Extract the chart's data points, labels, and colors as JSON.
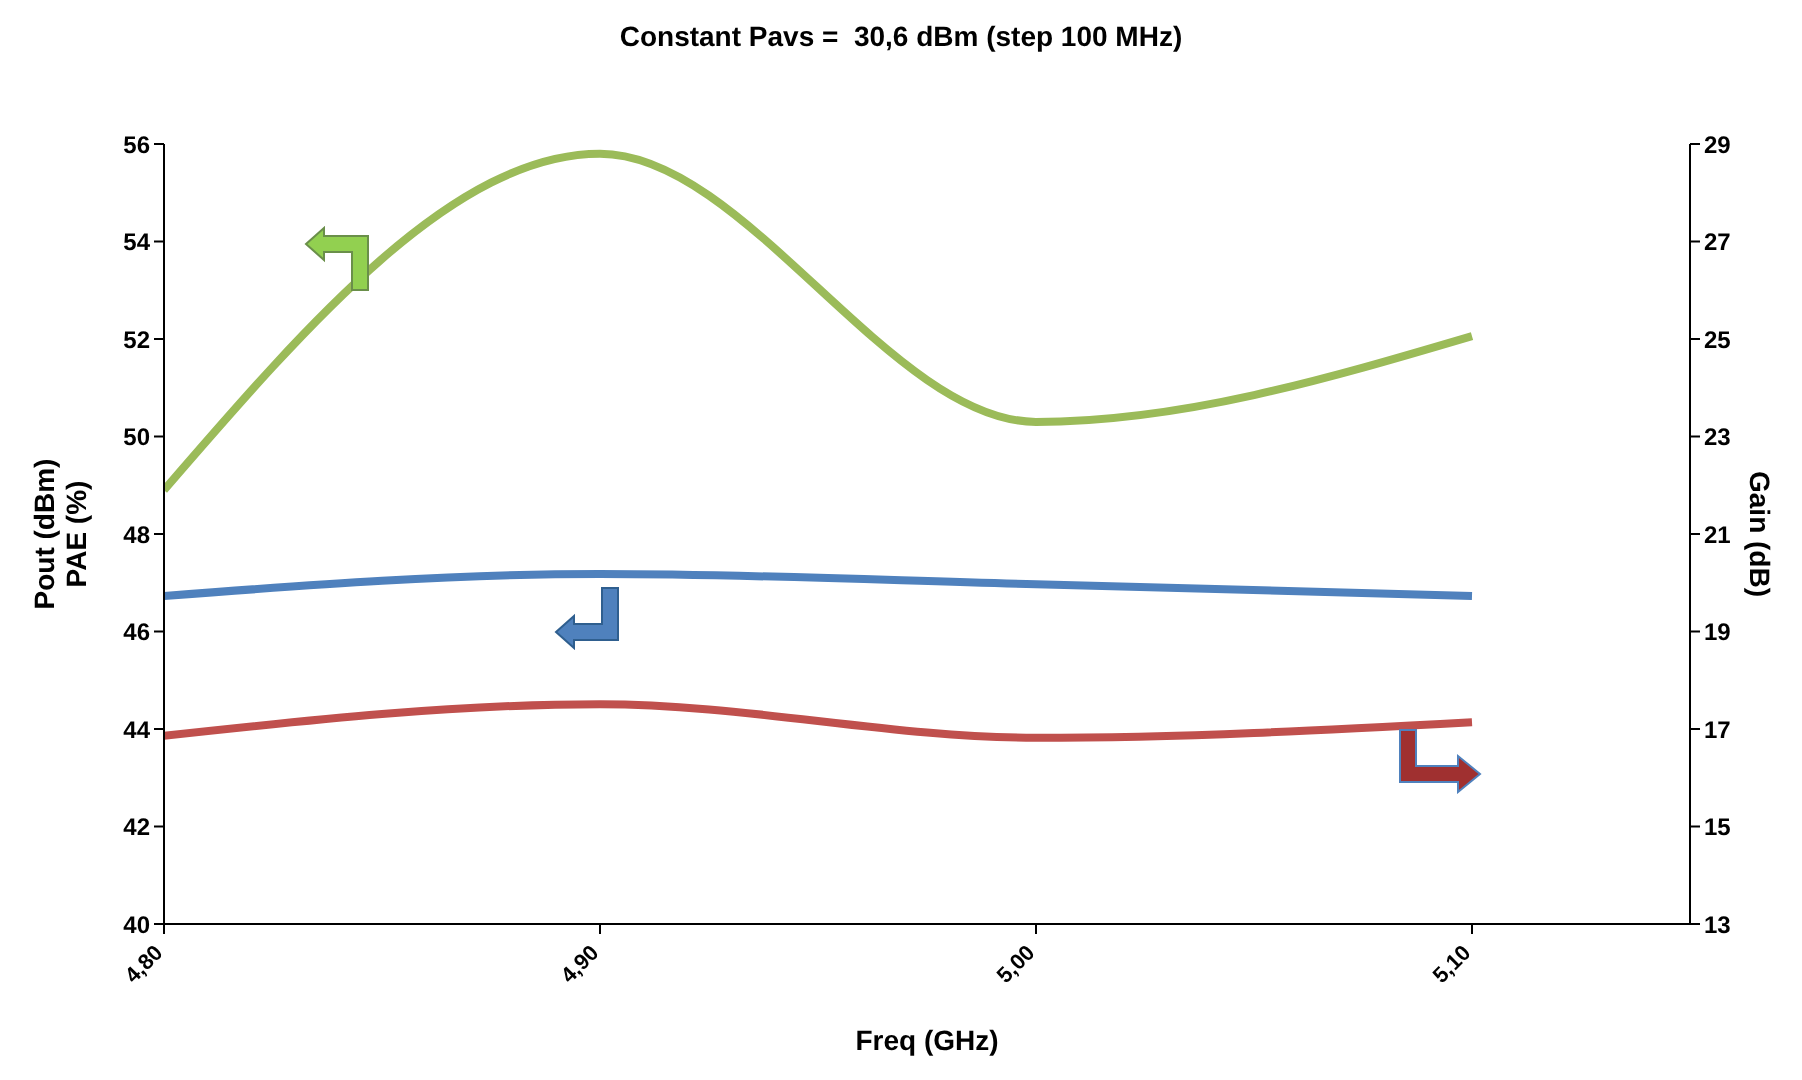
{
  "chart_data": {
    "type": "line",
    "title": "Constant Pavs =  30,6 dBm (step 100 MHz)",
    "xlabel": "Freq (GHz)",
    "ylabel": "Pout (dBm)\nPAE (%)",
    "y2label": "Gain (dB)",
    "x": [
      4.8,
      4.9,
      5.0,
      5.1
    ],
    "series": [
      {
        "color": "#9bbb59",
        "values": [
          48.9,
          55.8,
          50.3,
          52.06
        ]
      },
      {
        "color": "#4f81bd",
        "values": [
          46.73,
          47.18,
          46.97,
          46.73
        ]
      },
      {
        "color": "#c0504d",
        "values": [
          16.86,
          17.51,
          16.82,
          17.14
        ],
        "axis": "y2"
      }
    ],
    "xlim": [
      4.8,
      5.15
    ],
    "xticks": [
      {
        "value": 4.8,
        "label": "4,80"
      },
      {
        "value": 4.9,
        "label": "4,90"
      },
      {
        "value": 5.0,
        "label": "5,00"
      },
      {
        "value": 5.1,
        "label": "5,10"
      }
    ],
    "ylim": [
      40,
      56
    ],
    "yticks": [
      40,
      42,
      44,
      46,
      48,
      50,
      52,
      54,
      56
    ],
    "y2lim": [
      13,
      29
    ],
    "y2ticks": [
      13,
      15,
      17,
      19,
      21,
      23,
      25,
      27,
      29
    ],
    "marker": "none",
    "line_style": "solid"
  }
}
